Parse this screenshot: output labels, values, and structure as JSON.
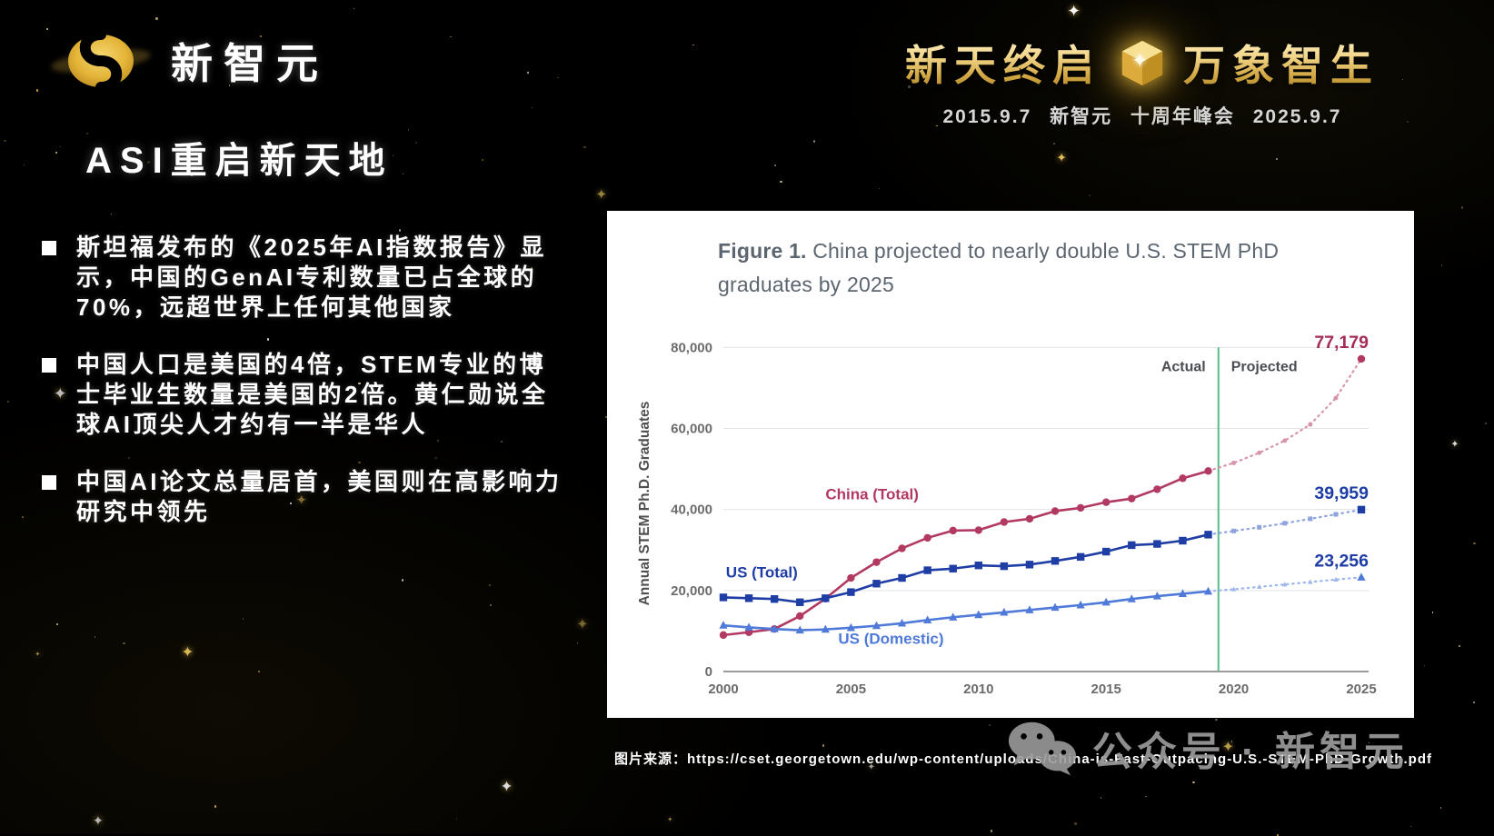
{
  "logo": {
    "text": "新智元"
  },
  "header": {
    "title_left": "新天终启",
    "title_right": "万象智生",
    "subtitle": "2015.9.7 新智元 十周年峰会 2025.9.7"
  },
  "slide": {
    "title": "ASI重启新天地",
    "bullets": [
      "斯坦福发布的《2025年AI指数报告》显示，中国的GenAI专利数量已占全球的70%，远超世界上任何其他国家",
      "中国人口是美国的4倍，STEM专业的博士毕业生数量是美国的2倍。黄仁勋说全球AI顶尖人才约有一半是华人",
      "中国AI论文总量居首，美国则在高影响力研究中领先"
    ]
  },
  "source": {
    "label": "图片来源：",
    "url": "https://cset.georgetown.edu/wp-content/uploads/China-is-Fast-Outpacing-U.S.-STEM-PhD-Growth.pdf"
  },
  "watermark": {
    "text": "公众号 · 新智元"
  },
  "chart_data": {
    "type": "line",
    "title_prefix": "Figure 1.",
    "title_rest": " China projected to nearly double U.S. STEM PhD graduates by 2025",
    "ylabel": "Annual STEM Ph.D. Graduates",
    "x": [
      2000,
      2001,
      2002,
      2003,
      2004,
      2005,
      2006,
      2007,
      2008,
      2009,
      2010,
      2011,
      2012,
      2013,
      2014,
      2015,
      2016,
      2017,
      2018,
      2019,
      2020,
      2021,
      2022,
      2023,
      2024,
      2025
    ],
    "xticks": [
      2000,
      2005,
      2010,
      2015,
      2020,
      2025
    ],
    "yticks": [
      0,
      20000,
      40000,
      60000,
      80000
    ],
    "ylim": [
      0,
      83000
    ],
    "grid": true,
    "actual_until": 2019,
    "divider_x": 2019.4,
    "divider_color": "#58b98b",
    "actual_label": "Actual",
    "projected_label": "Projected",
    "colors": {
      "grid": "#e3e3e3",
      "axis": "#9b9b9b",
      "tick": "#6b6b6b",
      "annotation": "#4a4f55",
      "title": "#5c6670"
    },
    "series": [
      {
        "id": "china-total",
        "name": "China (Total)",
        "marker": "circle",
        "color": "#b23a60",
        "proj_color": "#d795ad",
        "end_color": "#a62c57",
        "end_label": "77,179",
        "label_pos": {
          "x": 2004.0,
          "y": 42500
        },
        "values": [
          9000,
          9700,
          10500,
          13700,
          18000,
          23100,
          27000,
          30400,
          33000,
          34800,
          34900,
          36900,
          37700,
          39600,
          40400,
          41800,
          42700,
          45000,
          47700,
          49500,
          51500,
          54000,
          57000,
          61000,
          67500,
          77179
        ]
      },
      {
        "id": "us-total",
        "name": "US (Total)",
        "marker": "square",
        "color": "#1f3ea5",
        "proj_color": "#8fa3dd",
        "end_color": "#1f3ea5",
        "end_label": "39,959",
        "label_pos": {
          "x": 2000.1,
          "y": 23200
        },
        "values": [
          18300,
          18100,
          17900,
          17100,
          18100,
          19600,
          21700,
          23100,
          25000,
          25400,
          26200,
          26000,
          26400,
          27300,
          28300,
          29600,
          31200,
          31500,
          32300,
          33800,
          34700,
          35600,
          36600,
          37700,
          38800,
          39959
        ]
      },
      {
        "id": "us-domestic",
        "name": "US (Domestic)",
        "marker": "triangle",
        "color": "#4f7ad9",
        "proj_color": "#9fb7ea",
        "end_color": "#1f3ea5",
        "end_label": "23,256",
        "label_pos": {
          "x": 2004.5,
          "y": 6800
        },
        "values": [
          11400,
          10900,
          10500,
          10200,
          10400,
          10800,
          11300,
          11900,
          12700,
          13400,
          14000,
          14600,
          15200,
          15800,
          16400,
          17100,
          17900,
          18600,
          19200,
          19800,
          20300,
          20900,
          21500,
          22100,
          22700,
          23256
        ]
      }
    ]
  }
}
